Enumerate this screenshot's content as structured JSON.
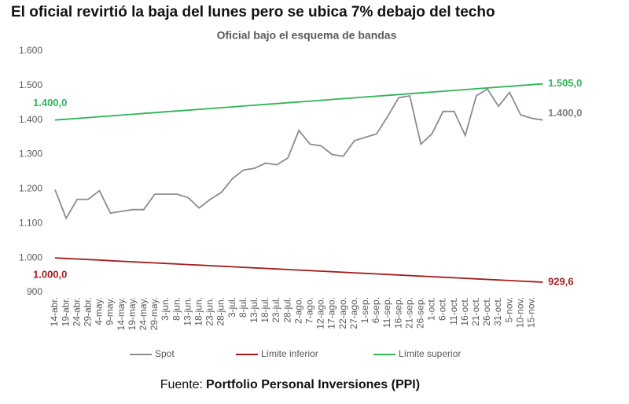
{
  "chart_data": {
    "type": "line",
    "title": "El oficial revirtió la baja del lunes pero se ubica 7% debajo del techo",
    "subtitle": "Oficial bajo el esquema de bandas",
    "source_prefix": "Fuente:",
    "source": "Portfolio Personal Inversiones (PPI)",
    "categories": [
      "14-abr.",
      "19-abr.",
      "24-abr.",
      "29-abr.",
      "4-may.",
      "9-may.",
      "14-may.",
      "19-may.",
      "24-may.",
      "29-may.",
      "3-jun.",
      "8-jun.",
      "13-jun.",
      "18-jun.",
      "23-jun.",
      "28-jun.",
      "3-jul.",
      "8-jul.",
      "13-jul.",
      "18-jul.",
      "23-jul.",
      "28-jul.",
      "2-ago.",
      "7-ago.",
      "12-ago.",
      "17-ago.",
      "22-ago.",
      "27-ago.",
      "1-sep.",
      "6-sep.",
      "11-sep.",
      "16-sep.",
      "21-sep.",
      "26-sep.",
      "1-oct.",
      "6-oct.",
      "11-oct.",
      "16-oct.",
      "21-oct.",
      "26-oct.",
      "31-oct.",
      "5-nov.",
      "10-nov.",
      "15-nov.",
      null
    ],
    "series": [
      {
        "name": "Spot",
        "color": "#8c8c8c",
        "values": [
          1198,
          1115,
          1170,
          1170,
          1195,
          1130,
          1135,
          1140,
          1140,
          1185,
          1185,
          1185,
          1175,
          1145,
          1170,
          1190,
          1230,
          1255,
          1260,
          1275,
          1270,
          1290,
          1370,
          1330,
          1325,
          1300,
          1295,
          1340,
          1350,
          1360,
          1410,
          1465,
          1470,
          1330,
          1360,
          1425,
          1425,
          1355,
          1470,
          1490,
          1440,
          1480,
          1415,
          1405,
          1400
        ]
      },
      {
        "name": "Límite inferior",
        "color": "#a51c1c",
        "values": [
          1000,
          998.4,
          996.8,
          995.2,
          993.6,
          992,
          990.4,
          988.8,
          987.2,
          985.6,
          984,
          982.4,
          980.8,
          979.2,
          977.6,
          976,
          974.4,
          972.8,
          971.2,
          969.6,
          968,
          966.4,
          964.8,
          963.2,
          961.6,
          960,
          958.4,
          956.8,
          955.2,
          953.6,
          952,
          950.4,
          948.8,
          947.2,
          945.6,
          944,
          942.4,
          940.8,
          939.2,
          937.6,
          936,
          934.4,
          932.8,
          931.2,
          929.6
        ]
      },
      {
        "name": "Límite superior",
        "color": "#2fb457",
        "values": [
          1400,
          1402.4,
          1404.8,
          1407.2,
          1409.5,
          1411.9,
          1414.3,
          1416.7,
          1419.1,
          1421.5,
          1423.9,
          1426.3,
          1428.6,
          1431,
          1433.4,
          1435.8,
          1438.2,
          1440.6,
          1443,
          1445.3,
          1447.7,
          1450.1,
          1452.5,
          1454.9,
          1457.3,
          1459.7,
          1462,
          1464.4,
          1466.8,
          1469.2,
          1471.6,
          1474,
          1476.4,
          1478.8,
          1481.1,
          1483.5,
          1485.9,
          1488.3,
          1490.7,
          1493.1,
          1495.5,
          1497.8,
          1500.2,
          1502.6,
          1505
        ]
      }
    ],
    "annotations": [
      {
        "text": "1.400,0",
        "value": 1400,
        "color": "#2fb457"
      },
      {
        "text": "1.505,0",
        "value": 1505,
        "color": "#2fb457"
      },
      {
        "text": "1.400,0",
        "value": 1400,
        "color": "#7f7f7f"
      },
      {
        "text": "1.000,0",
        "value": 1000,
        "color": "#a51c1c"
      },
      {
        "text": "929,6",
        "value": 929.6,
        "color": "#a51c1c"
      }
    ],
    "ylim": [
      900,
      1600
    ],
    "yticks": [
      900,
      {
        "value": 1000,
        "label": "1.000"
      },
      {
        "value": 1100,
        "label": "1.100"
      },
      {
        "value": 1200,
        "label": "1.200"
      },
      {
        "value": 1300,
        "label": "1.300"
      },
      {
        "value": 1400,
        "label": "1.400"
      },
      {
        "value": 1500,
        "label": "1.500"
      },
      {
        "value": 1600,
        "label": "1.600"
      }
    ],
    "grid": false
  }
}
